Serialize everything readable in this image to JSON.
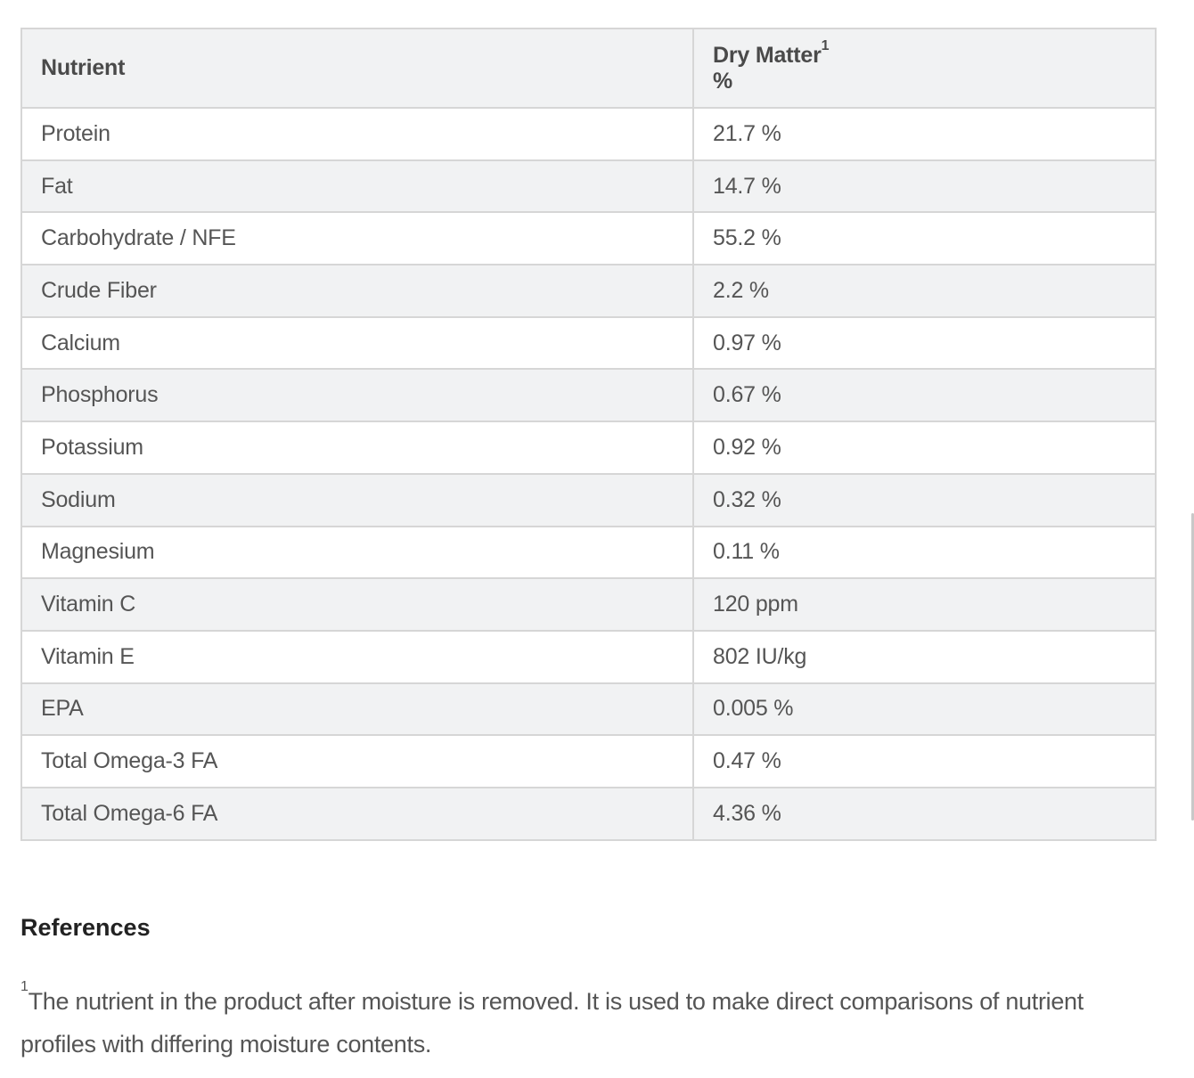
{
  "table": {
    "header": {
      "nutrient": "Nutrient",
      "dry_matter": "Dry Matter",
      "dry_matter_ref": "1",
      "dry_matter_unit": "%"
    },
    "rows": [
      {
        "nutrient": "Protein",
        "value": "21.7 %"
      },
      {
        "nutrient": "Fat",
        "value": "14.7 %"
      },
      {
        "nutrient": "Carbohydrate / NFE",
        "value": "55.2 %"
      },
      {
        "nutrient": "Crude Fiber",
        "value": "2.2 %"
      },
      {
        "nutrient": "Calcium",
        "value": "0.97 %"
      },
      {
        "nutrient": "Phosphorus",
        "value": "0.67 %"
      },
      {
        "nutrient": "Potassium",
        "value": "0.92 %"
      },
      {
        "nutrient": "Sodium",
        "value": "0.32 %"
      },
      {
        "nutrient": "Magnesium",
        "value": "0.11 %"
      },
      {
        "nutrient": "Vitamin C",
        "value": "120 ppm"
      },
      {
        "nutrient": "Vitamin E",
        "value": "802 IU/kg"
      },
      {
        "nutrient": "EPA",
        "value": "0.005 %"
      },
      {
        "nutrient": "Total Omega-3 FA",
        "value": "0.47 %"
      },
      {
        "nutrient": "Total Omega-6 FA",
        "value": "4.36 %"
      }
    ]
  },
  "references": {
    "heading": "References",
    "footnote_marker": "1",
    "footnote_text": "The nutrient in the product after moisture is removed. It is used to make direct comparisons of nutrient profiles with differing moisture contents."
  }
}
